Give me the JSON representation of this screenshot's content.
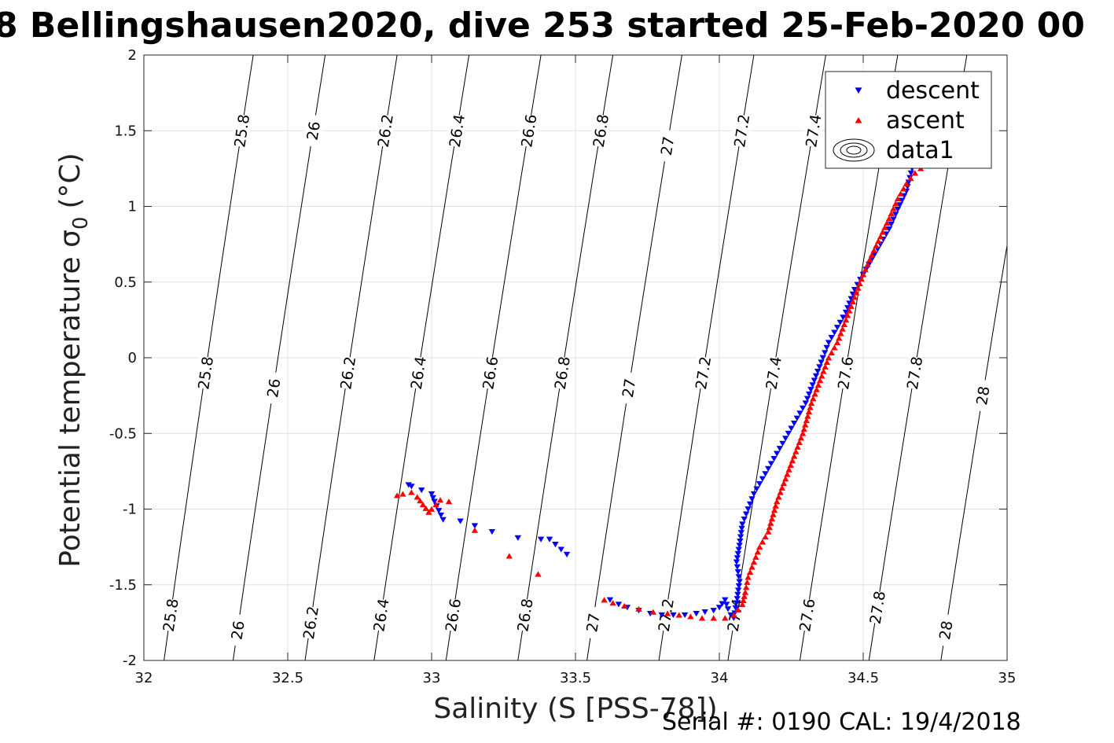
{
  "chart_data": {
    "type": "scatter",
    "title": "8 Bellingshausen2020, dive 253 started 25-Feb-2020 00",
    "xlabel": "Salinity (S [PSS-78])",
    "ylabel_main": "Potential temperature σ",
    "ylabel_sub": "0",
    "ylabel_unit": "(°C)",
    "xlim": [
      32,
      35
    ],
    "ylim": [
      -2,
      2
    ],
    "xticks": [
      "32",
      "32.5",
      "33",
      "33.5",
      "34",
      "34.5",
      "35"
    ],
    "yticks": [
      "-2",
      "-1.5",
      "-1",
      "-0.5",
      "0",
      "0.5",
      "1",
      "1.5",
      "2"
    ],
    "grid": true,
    "legend_position": "top-right",
    "legend": [
      "descent",
      "ascent",
      "data1"
    ],
    "footer": "Serial #: 0190  CAL: 19/4/2018",
    "colors": {
      "descent": "#0000ff",
      "ascent": "#ff0000",
      "contour": "#000000",
      "grid": "#e0e0e0"
    },
    "contours": [
      {
        "level": "25.8",
        "bottom_x": 32.07,
        "top_x": 32.38,
        "labels_y": [
          1.5,
          -0.1,
          -1.7
        ]
      },
      {
        "level": "26",
        "bottom_x": 32.31,
        "top_x": 32.63,
        "labels_y": [
          1.5,
          -0.2,
          -1.8
        ]
      },
      {
        "level": "26.2",
        "bottom_x": 32.56,
        "top_x": 32.88,
        "labels_y": [
          1.5,
          -0.1,
          -1.75
        ]
      },
      {
        "level": "26.4",
        "bottom_x": 32.8,
        "top_x": 33.13,
        "labels_y": [
          1.5,
          -0.1,
          -1.7
        ]
      },
      {
        "level": "26.6",
        "bottom_x": 33.05,
        "top_x": 33.38,
        "labels_y": [
          1.5,
          -0.1,
          -1.7
        ]
      },
      {
        "level": "26.8",
        "bottom_x": 33.3,
        "top_x": 33.63,
        "labels_y": [
          1.5,
          -0.1,
          -1.7
        ]
      },
      {
        "level": "27",
        "bottom_x": 33.54,
        "top_x": 33.87,
        "labels_y": [
          1.4,
          -0.2,
          -1.75
        ]
      },
      {
        "level": "27.2",
        "bottom_x": 33.79,
        "top_x": 34.12,
        "labels_y": [
          1.5,
          -0.1,
          -1.7
        ]
      },
      {
        "level": "27.4",
        "bottom_x": 34.03,
        "top_x": 34.37,
        "labels_y": [
          1.5,
          -0.1,
          -1.7
        ]
      },
      {
        "level": "27.6",
        "bottom_x": 34.28,
        "top_x": 34.62,
        "labels_y": [
          -0.1,
          -1.7
        ]
      },
      {
        "level": "27.8",
        "bottom_x": 34.52,
        "top_x": 34.86,
        "labels_y": [
          -0.1,
          -1.65
        ]
      },
      {
        "level": "28",
        "bottom_x": 34.77,
        "top_x": 35.11,
        "labels_y": [
          1.3,
          -0.25,
          -1.8
        ]
      }
    ],
    "series": [
      {
        "name": "descent",
        "marker": "triangle-down",
        "x": [
          32.92,
          32.93,
          33.0,
          33.01,
          33.04,
          33.1,
          33.15,
          33.21,
          33.3,
          33.38,
          33.41,
          33.47,
          33.62,
          33.65,
          33.68,
          33.72,
          33.76,
          33.8,
          33.84,
          33.88,
          33.92,
          33.95,
          33.98,
          34.0,
          34.02,
          34.03,
          34.04,
          34.05,
          34.06,
          34.07,
          34.06,
          34.07,
          34.08,
          34.1,
          34.12,
          34.15,
          34.18,
          34.21,
          34.24,
          34.27,
          34.3,
          34.33,
          34.36,
          34.38,
          34.41,
          34.44,
          34.47,
          34.5,
          34.53,
          34.56,
          34.59,
          34.62,
          34.65,
          34.67,
          34.68
        ],
        "y": [
          -0.84,
          -0.85,
          -0.9,
          -0.95,
          -1.07,
          -1.08,
          -1.11,
          -1.15,
          -1.19,
          -1.2,
          -1.2,
          -1.3,
          -1.6,
          -1.63,
          -1.65,
          -1.67,
          -1.69,
          -1.7,
          -1.7,
          -1.7,
          -1.69,
          -1.68,
          -1.67,
          -1.65,
          -1.6,
          -1.66,
          -1.7,
          -1.72,
          -1.62,
          -1.48,
          -1.35,
          -1.24,
          -1.1,
          -1.0,
          -0.9,
          -0.8,
          -0.7,
          -0.6,
          -0.5,
          -0.4,
          -0.3,
          -0.15,
          0.0,
          0.1,
          0.2,
          0.3,
          0.45,
          0.55,
          0.65,
          0.75,
          0.85,
          0.98,
          1.1,
          1.25,
          1.3
        ]
      },
      {
        "name": "ascent",
        "marker": "triangle-up",
        "x": [
          32.88,
          32.9,
          32.93,
          32.95,
          32.97,
          32.99,
          33.0,
          33.03,
          33.06,
          33.15,
          33.27,
          33.37,
          33.6,
          33.63,
          33.67,
          33.72,
          33.77,
          33.82,
          33.86,
          33.9,
          33.94,
          33.98,
          34.02,
          34.05,
          34.08,
          34.09,
          34.1,
          34.12,
          34.14,
          34.17,
          34.2,
          34.23,
          34.26,
          34.29,
          34.32,
          34.35,
          34.38,
          34.41,
          34.44,
          34.47,
          34.5,
          34.53,
          34.56,
          34.59,
          34.62,
          34.65,
          34.68,
          34.7
        ],
        "y": [
          -0.91,
          -0.9,
          -0.89,
          -0.92,
          -0.97,
          -1.02,
          -1.0,
          -0.94,
          -0.95,
          -1.14,
          -1.31,
          -1.43,
          -1.6,
          -1.62,
          -1.64,
          -1.66,
          -1.68,
          -1.69,
          -1.7,
          -1.71,
          -1.72,
          -1.72,
          -1.72,
          -1.7,
          -1.63,
          -1.55,
          -1.45,
          -1.35,
          -1.25,
          -1.15,
          -0.95,
          -0.8,
          -0.65,
          -0.5,
          -0.3,
          -0.15,
          0.0,
          0.1,
          0.25,
          0.4,
          0.55,
          0.68,
          0.8,
          0.92,
          1.05,
          1.15,
          1.22,
          1.25
        ]
      }
    ]
  }
}
